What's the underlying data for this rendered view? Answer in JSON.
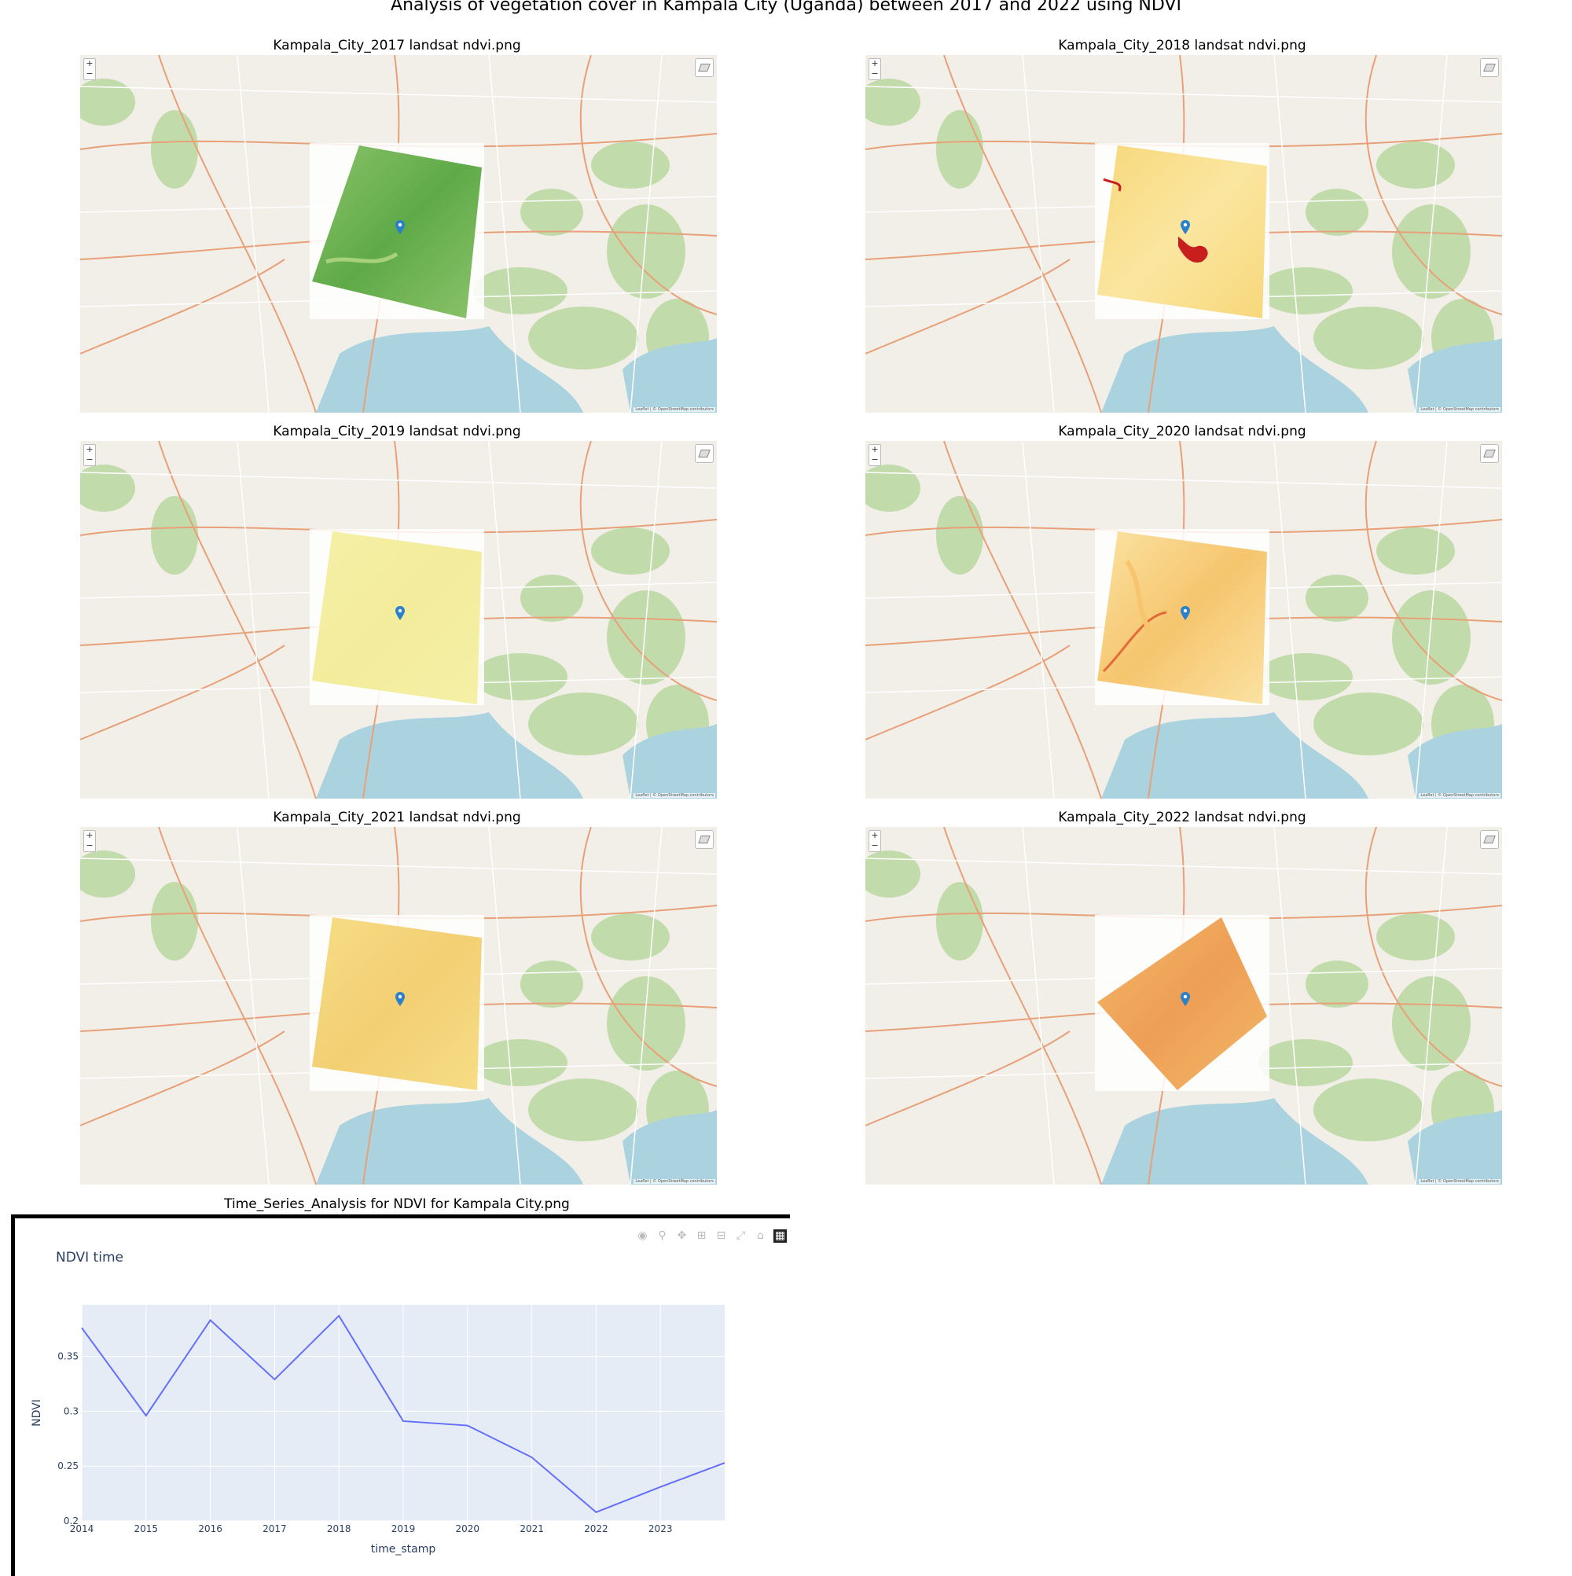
{
  "figure_title": "Analysis of vegetation cover in Kampala City (Uganda) between 2017 and 2022 using NDVI",
  "panels": [
    {
      "title": "Kampala_City_2017 landsat ndvi.png",
      "palette": [
        "#8cc36b",
        "#5faa48",
        "#a7d27b"
      ]
    },
    {
      "title": "Kampala_City_2018 landsat ndvi.png",
      "palette": [
        "#f7d77a",
        "#fbe6a0",
        "#c81e1e"
      ]
    },
    {
      "title": "Kampala_City_2019 landsat ndvi.png",
      "palette": [
        "#f5f0a6",
        "#f3ec9c",
        "#f8f4b4"
      ]
    },
    {
      "title": "Kampala_City_2020 landsat ndvi.png",
      "palette": [
        "#fbe3a3",
        "#f6c56e",
        "#e46a3a"
      ]
    },
    {
      "title": "Kampala_City_2021 landsat ndvi.png",
      "palette": [
        "#f6dd86",
        "#f3cf73",
        "#f8e79c"
      ]
    },
    {
      "title": "Kampala_City_2022 landsat ndvi.png",
      "palette": [
        "#f2b868",
        "#ee9f55",
        "#f5c97c"
      ]
    }
  ],
  "map": {
    "zoom_in": "+",
    "zoom_out": "−",
    "attribution": "Leaflet | © OpenStreetMap contributors",
    "marker_icon": "map-pin-icon",
    "layers_icon": "layers-icon"
  },
  "timeseries": {
    "panel_title": "Time_Series_Analysis for NDVI for Kampala City.png",
    "toolbar": [
      "camera-icon",
      "zoom-icon",
      "pan-icon",
      "zoom-in-icon",
      "zoom-out-icon",
      "autoscale-icon",
      "home-icon",
      "plotly-logo-icon"
    ],
    "colors": {
      "line": "#636efa",
      "plot_bg": "#e5ecf6",
      "text": "#2a3f5f"
    }
  },
  "chart_data": {
    "type": "line",
    "title": "NDVI time",
    "xlabel": "time_stamp",
    "ylabel": "NDVI",
    "x": [
      2014,
      2015,
      2016,
      2017,
      2018,
      2019,
      2020,
      2021,
      2022,
      2023,
      2024
    ],
    "y": [
      0.376,
      0.296,
      0.383,
      0.329,
      0.387,
      0.291,
      0.287,
      0.258,
      0.208,
      0.231,
      0.253
    ],
    "x_ticks": [
      "2014",
      "2015",
      "2016",
      "2017",
      "2018",
      "2019",
      "2020",
      "2021",
      "2022",
      "2023"
    ],
    "y_ticks": [
      "0.2",
      "0.25",
      "0.3",
      "0.35"
    ],
    "xlim": [
      2014,
      2024
    ],
    "ylim": [
      0.2,
      0.397
    ],
    "grid": true
  }
}
